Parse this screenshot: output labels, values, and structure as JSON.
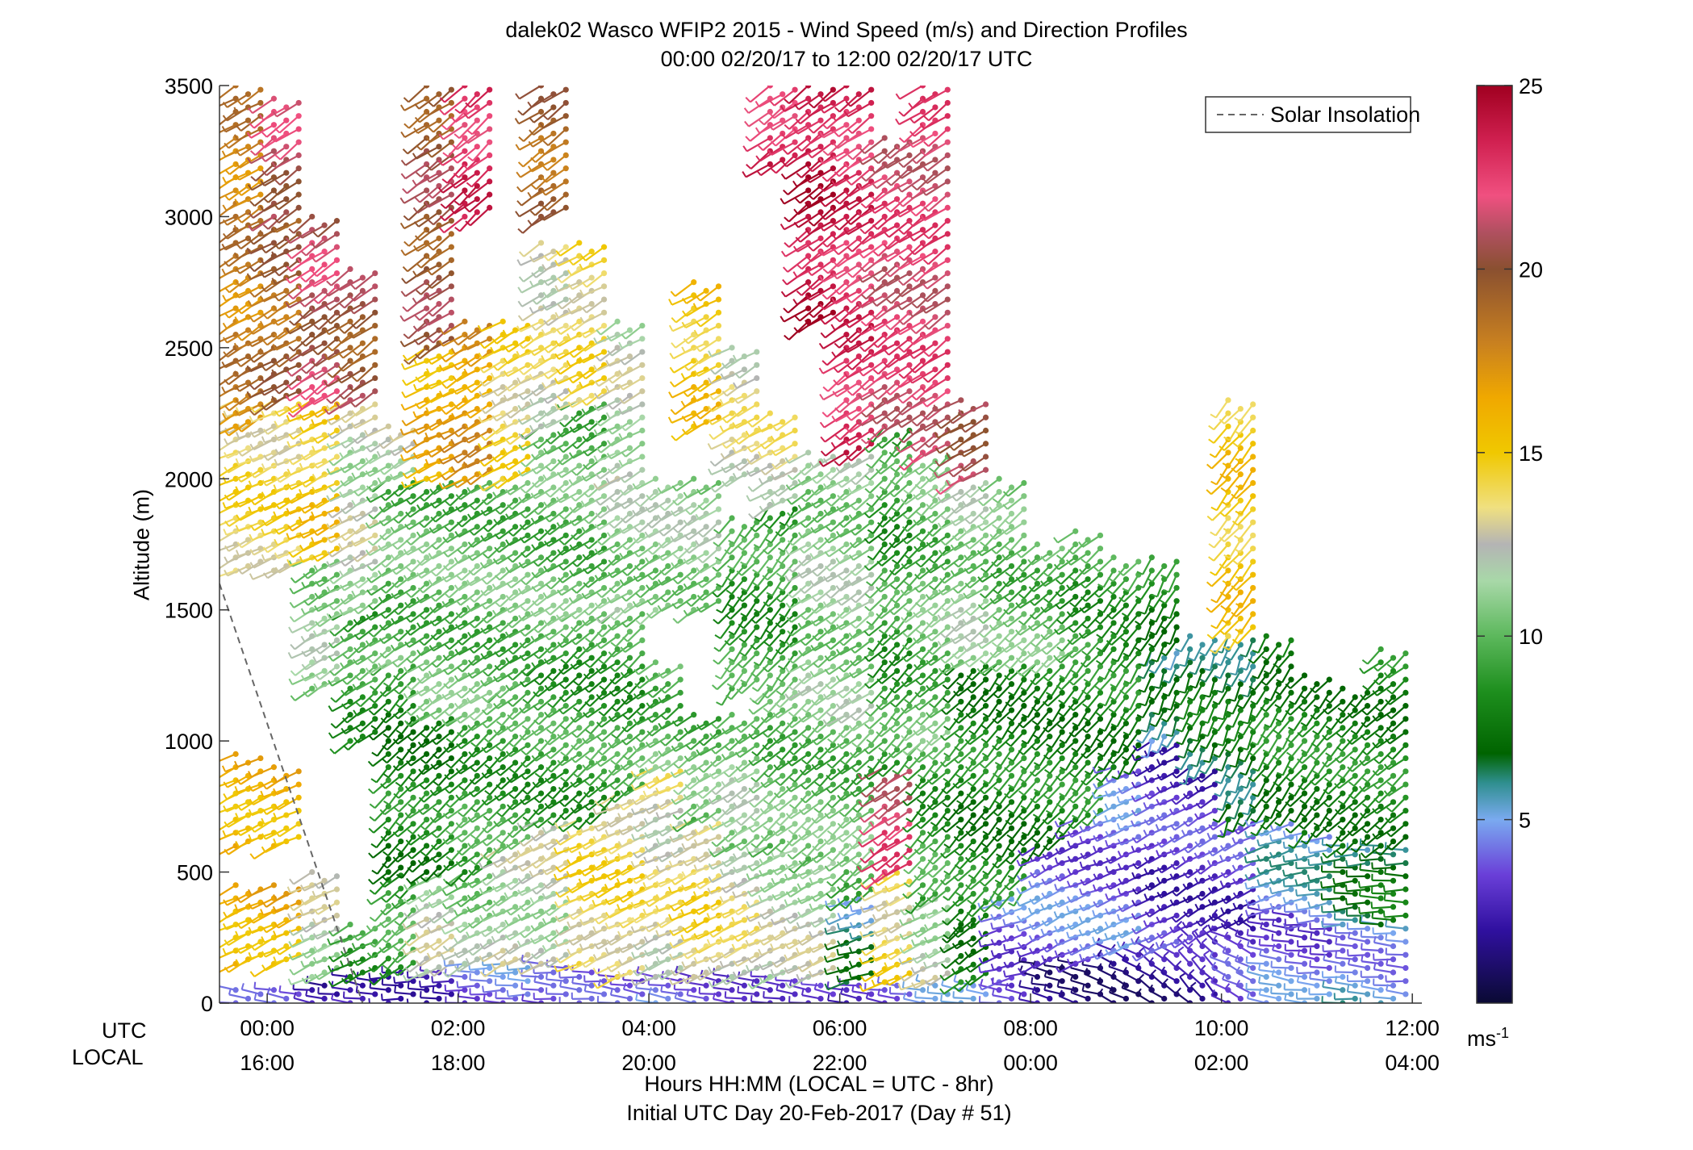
{
  "chart_data": {
    "type": "wind-barb-profile",
    "title": "dalek02 Wasco WFIP2 2015 - Wind Speed (m/s) and Direction Profiles",
    "subtitle": "00:00 02/20/17 to 12:00 02/20/17  UTC",
    "ylabel": "Altitude (m)",
    "xlabel": "Hours HH:MM  (LOCAL = UTC - 8hr)",
    "xlabel2": "Initial UTC Day 20-Feb-2017 (Day # 51)",
    "row_label_utc": "UTC",
    "row_label_local": "LOCAL",
    "x_ticks_utc": [
      "00:00",
      "02:00",
      "04:00",
      "06:00",
      "08:00",
      "10:00",
      "12:00"
    ],
    "x_ticks_local": [
      "16:00",
      "18:00",
      "20:00",
      "22:00",
      "00:00",
      "02:00",
      "04:00"
    ],
    "x_tick_hours": [
      0,
      2,
      4,
      6,
      8,
      10,
      12
    ],
    "xlim_hours": [
      -0.5,
      12.1
    ],
    "y_ticks": [
      0,
      500,
      1000,
      1500,
      2000,
      2500,
      3000,
      3500
    ],
    "ylim": [
      0,
      3500
    ],
    "legend": {
      "label": "Solar Insolation",
      "placement": "top-right"
    },
    "insolation": {
      "points": [
        [
          -0.5,
          1600
        ],
        [
          1.0,
          0
        ]
      ]
    },
    "colorbar": {
      "ticks": [
        5,
        10,
        15,
        20,
        25
      ],
      "range": [
        0,
        25
      ],
      "units_label": "ms",
      "units_exp": "-1",
      "stops": [
        [
          0,
          "#0a0a33"
        ],
        [
          2,
          "#3010a0"
        ],
        [
          3.5,
          "#6a3fd8"
        ],
        [
          5,
          "#7aaaf0"
        ],
        [
          6,
          "#2f8f8f"
        ],
        [
          6.8,
          "#006400"
        ],
        [
          8.5,
          "#1e8f1e"
        ],
        [
          10,
          "#5cb85c"
        ],
        [
          11.5,
          "#a8d8a8"
        ],
        [
          12.5,
          "#b4b4b4"
        ],
        [
          13.5,
          "#f0e080"
        ],
        [
          15,
          "#f0c800"
        ],
        [
          16.5,
          "#f0a800"
        ],
        [
          18,
          "#c88020"
        ],
        [
          20,
          "#8a5030"
        ],
        [
          21,
          "#b05060"
        ],
        [
          22,
          "#f05080"
        ],
        [
          23.5,
          "#d02050"
        ],
        [
          25,
          "#a00020"
        ]
      ]
    },
    "profiles_note": "Approximate wind profiles per column: [utc_hour, [[alt_min_m, alt_max_m, speed_mps, dir_deg], ...]]",
    "profiles": [
      [
        -0.2,
        [
          [
            0,
            60,
            3,
            280
          ],
          [
            150,
            450,
            16,
            240
          ],
          [
            600,
            950,
            16,
            240
          ],
          [
            1650,
            2300,
            14,
            240
          ],
          [
            2200,
            3500,
            18,
            235
          ]
        ]
      ],
      [
        0.2,
        [
          [
            0,
            60,
            3,
            280
          ],
          [
            150,
            450,
            16,
            240
          ],
          [
            600,
            900,
            16,
            240
          ],
          [
            1650,
            2300,
            14,
            240
          ],
          [
            2300,
            3000,
            19,
            235
          ],
          [
            3000,
            3450,
            21,
            230
          ]
        ]
      ],
      [
        0.6,
        [
          [
            0,
            80,
            2,
            280
          ],
          [
            100,
            500,
            12,
            240
          ],
          [
            1200,
            1700,
            11,
            235
          ],
          [
            1700,
            2300,
            15,
            240
          ],
          [
            2300,
            3000,
            21,
            230
          ]
        ]
      ],
      [
        1.0,
        [
          [
            0,
            100,
            3,
            280
          ],
          [
            100,
            300,
            9,
            240
          ],
          [
            1000,
            1500,
            9,
            230
          ],
          [
            1500,
            2300,
            12,
            235
          ],
          [
            2300,
            2800,
            20,
            230
          ]
        ]
      ],
      [
        1.4,
        [
          [
            0,
            120,
            3,
            270
          ],
          [
            120,
            500,
            9,
            225
          ],
          [
            500,
            1300,
            8,
            220
          ],
          [
            1300,
            2000,
            10,
            230
          ],
          [
            2000,
            2200,
            12,
            235
          ]
        ]
      ],
      [
        1.8,
        [
          [
            0,
            120,
            3,
            270
          ],
          [
            120,
            500,
            12,
            235
          ],
          [
            500,
            1100,
            8,
            225
          ],
          [
            1100,
            2000,
            10,
            230
          ],
          [
            2000,
            2500,
            16,
            240
          ],
          [
            2500,
            3500,
            20,
            230
          ]
        ]
      ],
      [
        2.2,
        [
          [
            0,
            150,
            4,
            270
          ],
          [
            150,
            500,
            11,
            235
          ],
          [
            500,
            1100,
            9,
            225
          ],
          [
            1100,
            2000,
            10,
            230
          ],
          [
            2000,
            2600,
            17,
            235
          ],
          [
            3000,
            3500,
            23,
            225
          ]
        ]
      ],
      [
        2.6,
        [
          [
            0,
            150,
            4,
            270
          ],
          [
            150,
            600,
            12,
            235
          ],
          [
            600,
            1200,
            9,
            225
          ],
          [
            1200,
            2000,
            10,
            230
          ],
          [
            2000,
            2600,
            14,
            235
          ]
        ]
      ],
      [
        3.0,
        [
          [
            0,
            150,
            3,
            275
          ],
          [
            150,
            700,
            12,
            235
          ],
          [
            700,
            1300,
            9,
            225
          ],
          [
            1300,
            2200,
            10,
            230
          ],
          [
            2200,
            2900,
            13,
            235
          ],
          [
            3000,
            3500,
            19,
            230
          ]
        ]
      ],
      [
        3.4,
        [
          [
            0,
            120,
            3,
            275
          ],
          [
            150,
            700,
            14,
            240
          ],
          [
            700,
            1500,
            9,
            225
          ],
          [
            1500,
            2300,
            10,
            230
          ],
          [
            2300,
            2900,
            14,
            235
          ]
        ]
      ],
      [
        3.8,
        [
          [
            0,
            100,
            3,
            280
          ],
          [
            100,
            800,
            14,
            240
          ],
          [
            800,
            1500,
            9,
            225
          ],
          [
            1500,
            2000,
            11,
            230
          ],
          [
            2000,
            2600,
            12,
            235
          ]
        ]
      ],
      [
        4.2,
        [
          [
            0,
            100,
            4,
            280
          ],
          [
            100,
            900,
            13,
            240
          ],
          [
            900,
            1300,
            10,
            230
          ],
          [
            1500,
            2000,
            11,
            230
          ]
        ]
      ],
      [
        4.6,
        [
          [
            0,
            100,
            4,
            280
          ],
          [
            100,
            700,
            14,
            240
          ],
          [
            700,
            1100,
            10,
            230
          ],
          [
            1500,
            2000,
            11,
            230
          ],
          [
            2200,
            2750,
            15,
            235
          ]
        ]
      ],
      [
        5.0,
        [
          [
            0,
            100,
            4,
            280
          ],
          [
            100,
            600,
            13,
            240
          ],
          [
            600,
            1100,
            11,
            230
          ],
          [
            1200,
            1850,
            9,
            215
          ],
          [
            2000,
            2500,
            13,
            235
          ]
        ]
      ],
      [
        5.4,
        [
          [
            0,
            100,
            4,
            280
          ],
          [
            100,
            600,
            12,
            240
          ],
          [
            600,
            1200,
            10,
            225
          ],
          [
            1200,
            1900,
            9,
            215
          ],
          [
            1900,
            2250,
            13,
            235
          ],
          [
            3200,
            3500,
            23,
            230
          ]
        ]
      ],
      [
        5.8,
        [
          [
            0,
            80,
            4,
            280
          ],
          [
            100,
            550,
            12,
            240
          ],
          [
            550,
            1200,
            10,
            225
          ],
          [
            1200,
            2100,
            11,
            230
          ],
          [
            2600,
            3500,
            24,
            230
          ]
        ]
      ],
      [
        6.2,
        [
          [
            0,
            80,
            3,
            280
          ],
          [
            80,
            400,
            6,
            250
          ],
          [
            400,
            1100,
            10,
            225
          ],
          [
            1100,
            2100,
            11,
            230
          ],
          [
            2100,
            3500,
            23,
            230
          ]
        ]
      ],
      [
        6.6,
        [
          [
            0,
            80,
            3,
            280
          ],
          [
            80,
            500,
            14,
            240
          ],
          [
            500,
            900,
            22,
            230
          ],
          [
            900,
            2200,
            9,
            220
          ],
          [
            2200,
            3300,
            22,
            230
          ]
        ]
      ],
      [
        7.0,
        [
          [
            0,
            80,
            4,
            280
          ],
          [
            80,
            400,
            12,
            240
          ],
          [
            400,
            1000,
            9,
            220
          ],
          [
            1000,
            2100,
            10,
            225
          ],
          [
            2100,
            3500,
            22,
            230
          ]
        ]
      ],
      [
        7.4,
        [
          [
            0,
            80,
            4,
            280
          ],
          [
            80,
            300,
            8,
            230
          ],
          [
            300,
            1300,
            8,
            220
          ],
          [
            1300,
            2000,
            11,
            230
          ],
          [
            2000,
            2300,
            21,
            235
          ]
        ]
      ],
      [
        7.8,
        [
          [
            0,
            80,
            3,
            280
          ],
          [
            80,
            400,
            4,
            250
          ],
          [
            400,
            1300,
            8,
            215
          ],
          [
            1300,
            2000,
            10,
            225
          ]
        ]
      ],
      [
        8.2,
        [
          [
            0,
            150,
            2,
            285
          ],
          [
            150,
            600,
            4,
            240
          ],
          [
            600,
            1300,
            8,
            215
          ],
          [
            1300,
            1750,
            10,
            225
          ]
        ]
      ],
      [
        8.6,
        [
          [
            0,
            150,
            2,
            290
          ],
          [
            150,
            700,
            4,
            245
          ],
          [
            700,
            1350,
            8,
            215
          ],
          [
            1350,
            1800,
            9,
            225
          ]
        ]
      ],
      [
        9.0,
        [
          [
            0,
            200,
            2,
            300
          ],
          [
            200,
            900,
            4,
            245
          ],
          [
            900,
            1400,
            8,
            210
          ],
          [
            1400,
            1700,
            9,
            215
          ]
        ]
      ],
      [
        9.4,
        [
          [
            0,
            200,
            2,
            310
          ],
          [
            200,
            1000,
            3,
            240
          ],
          [
            1000,
            1350,
            6,
            200
          ],
          [
            1350,
            1700,
            8,
            205
          ]
        ]
      ],
      [
        9.8,
        [
          [
            0,
            250,
            2,
            320
          ],
          [
            250,
            900,
            3,
            235
          ],
          [
            900,
            1400,
            7,
            200
          ]
        ]
      ],
      [
        10.2,
        [
          [
            0,
            300,
            3,
            300
          ],
          [
            300,
            700,
            3,
            240
          ],
          [
            700,
            1400,
            7,
            200
          ],
          [
            1400,
            2300,
            15,
            215
          ]
        ]
      ],
      [
        10.6,
        [
          [
            0,
            350,
            4,
            280
          ],
          [
            350,
            700,
            5,
            250
          ],
          [
            700,
            1400,
            8,
            210
          ]
        ]
      ],
      [
        11.0,
        [
          [
            0,
            300,
            4,
            275
          ],
          [
            300,
            650,
            5,
            260
          ],
          [
            650,
            1250,
            8,
            215
          ]
        ]
      ],
      [
        11.4,
        [
          [
            0,
            300,
            5,
            275
          ],
          [
            300,
            600,
            6,
            265
          ],
          [
            600,
            1200,
            8,
            220
          ]
        ]
      ],
      [
        11.8,
        [
          [
            0,
            300,
            5,
            275
          ],
          [
            300,
            600,
            7,
            270
          ],
          [
            600,
            1350,
            8,
            225
          ]
        ]
      ]
    ]
  }
}
